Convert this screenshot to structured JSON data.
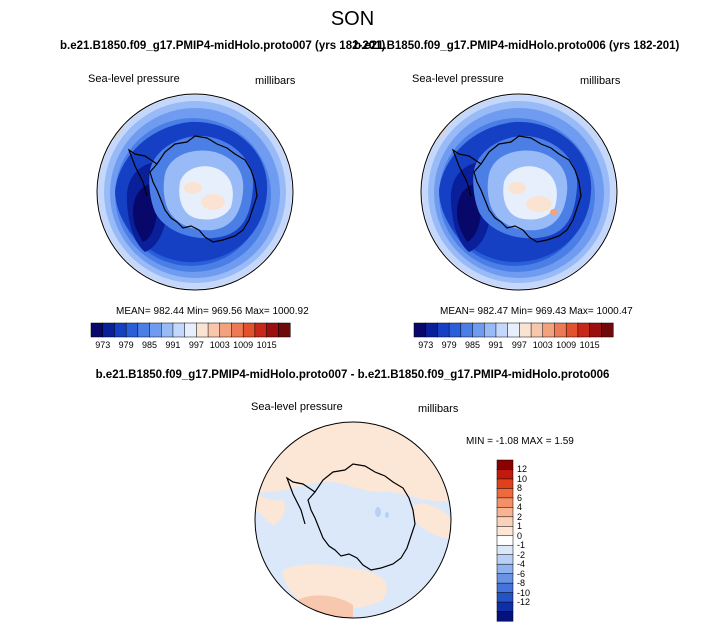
{
  "title": "SON",
  "panels": [
    {
      "case_title": "b.e21.B1850.f09_g17.PMIP4-midHolo.proto007 (yrs 182-201)",
      "variable": "Sea-level pressure",
      "units": "millibars",
      "stats": "MEAN= 982.44   Min= 969.56   Max= 1000.92"
    },
    {
      "case_title": "b.e21.B1850.f09_g17.PMIP4-midHolo.proto006 (yrs 182-201)",
      "variable": "Sea-level pressure",
      "units": "millibars",
      "stats": "MEAN= 982.47   Min= 969.43   Max= 1000.47"
    }
  ],
  "colorbar": {
    "colors": [
      "#08086a",
      "#0a1f9a",
      "#1640c4",
      "#2a5fd9",
      "#4b7fe6",
      "#6f9cf0",
      "#98baf6",
      "#c4d8fb",
      "#e8effc",
      "#fbe3d4",
      "#f8c6ab",
      "#f3a27e",
      "#ec7a54",
      "#e2522c",
      "#c6281a",
      "#9c0f0f",
      "#6e0a0a"
    ],
    "tick_labels": [
      "973",
      "979",
      "985",
      "991",
      "997",
      "1003",
      "1009",
      "1015"
    ]
  },
  "difference": {
    "title": "b.e21.B1850.f09_g17.PMIP4-midHolo.proto007 - b.e21.B1850.f09_g17.PMIP4-midHolo.proto006",
    "variable": "Sea-level pressure",
    "units": "millibars",
    "stats": "MIN =  -1.08 MAX =   1.59",
    "colorbar_colors": [
      "#8b0000",
      "#c2190f",
      "#e0401b",
      "#ee6a3c",
      "#f49068",
      "#f7b394",
      "#fad2ba",
      "#fce6d6",
      "#ffffff",
      "#dbe8fa",
      "#b8d0f6",
      "#90b3ef",
      "#6a93e6",
      "#4573da",
      "#2453c6",
      "#0e2fa6",
      "#06127c"
    ],
    "colorbar_labels": [
      "12",
      "10",
      "8",
      "6",
      "4",
      "2",
      "1",
      "0",
      "-1",
      "-2",
      "-4",
      "-6",
      "-8",
      "-10",
      "-12"
    ]
  }
}
